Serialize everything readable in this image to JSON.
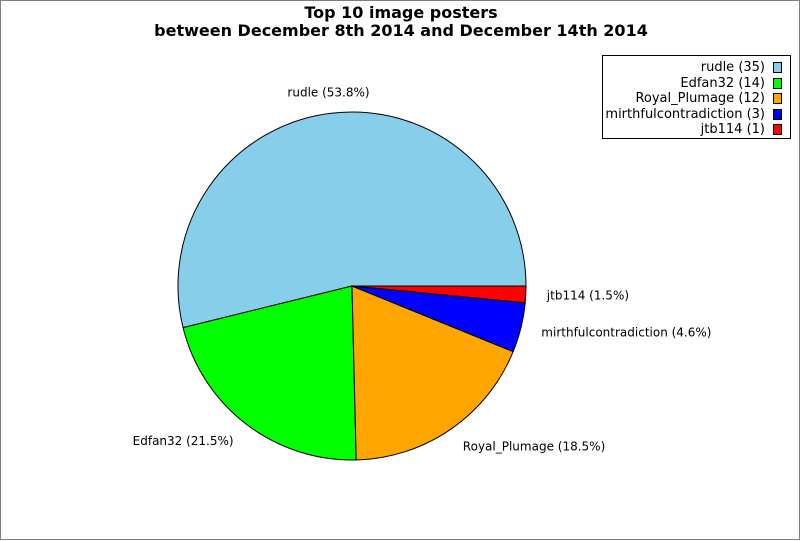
{
  "chart_data": {
    "type": "pie",
    "title": [
      "Top 10 image posters",
      "between December 8th 2014 and December 14th 2014"
    ],
    "legend_position": "top-right",
    "slices": [
      {
        "name": "rudle",
        "value": 35,
        "legend": "rudle (35)",
        "label": "rudle (53.8%)",
        "color": "#87ceeb"
      },
      {
        "name": "Edfan32",
        "value": 14,
        "legend": "Edfan32 (14)",
        "label": "Edfan32 (21.5%)",
        "color": "#00ff00"
      },
      {
        "name": "Royal_Plumage",
        "value": 12,
        "legend": "Royal_Plumage (12)",
        "label": "Royal_Plumage (18.5%)",
        "color": "#ffa500"
      },
      {
        "name": "mirthfulcontradiction",
        "value": 3,
        "legend": "mirthfulcontradiction (3)",
        "label": "mirthfulcontradiction (4.6%)",
        "color": "#0000ff"
      },
      {
        "name": "jtb114",
        "value": 1,
        "legend": "jtb114 (1)",
        "label": "jtb114 (1.5%)",
        "color": "#ff0000"
      }
    ]
  }
}
